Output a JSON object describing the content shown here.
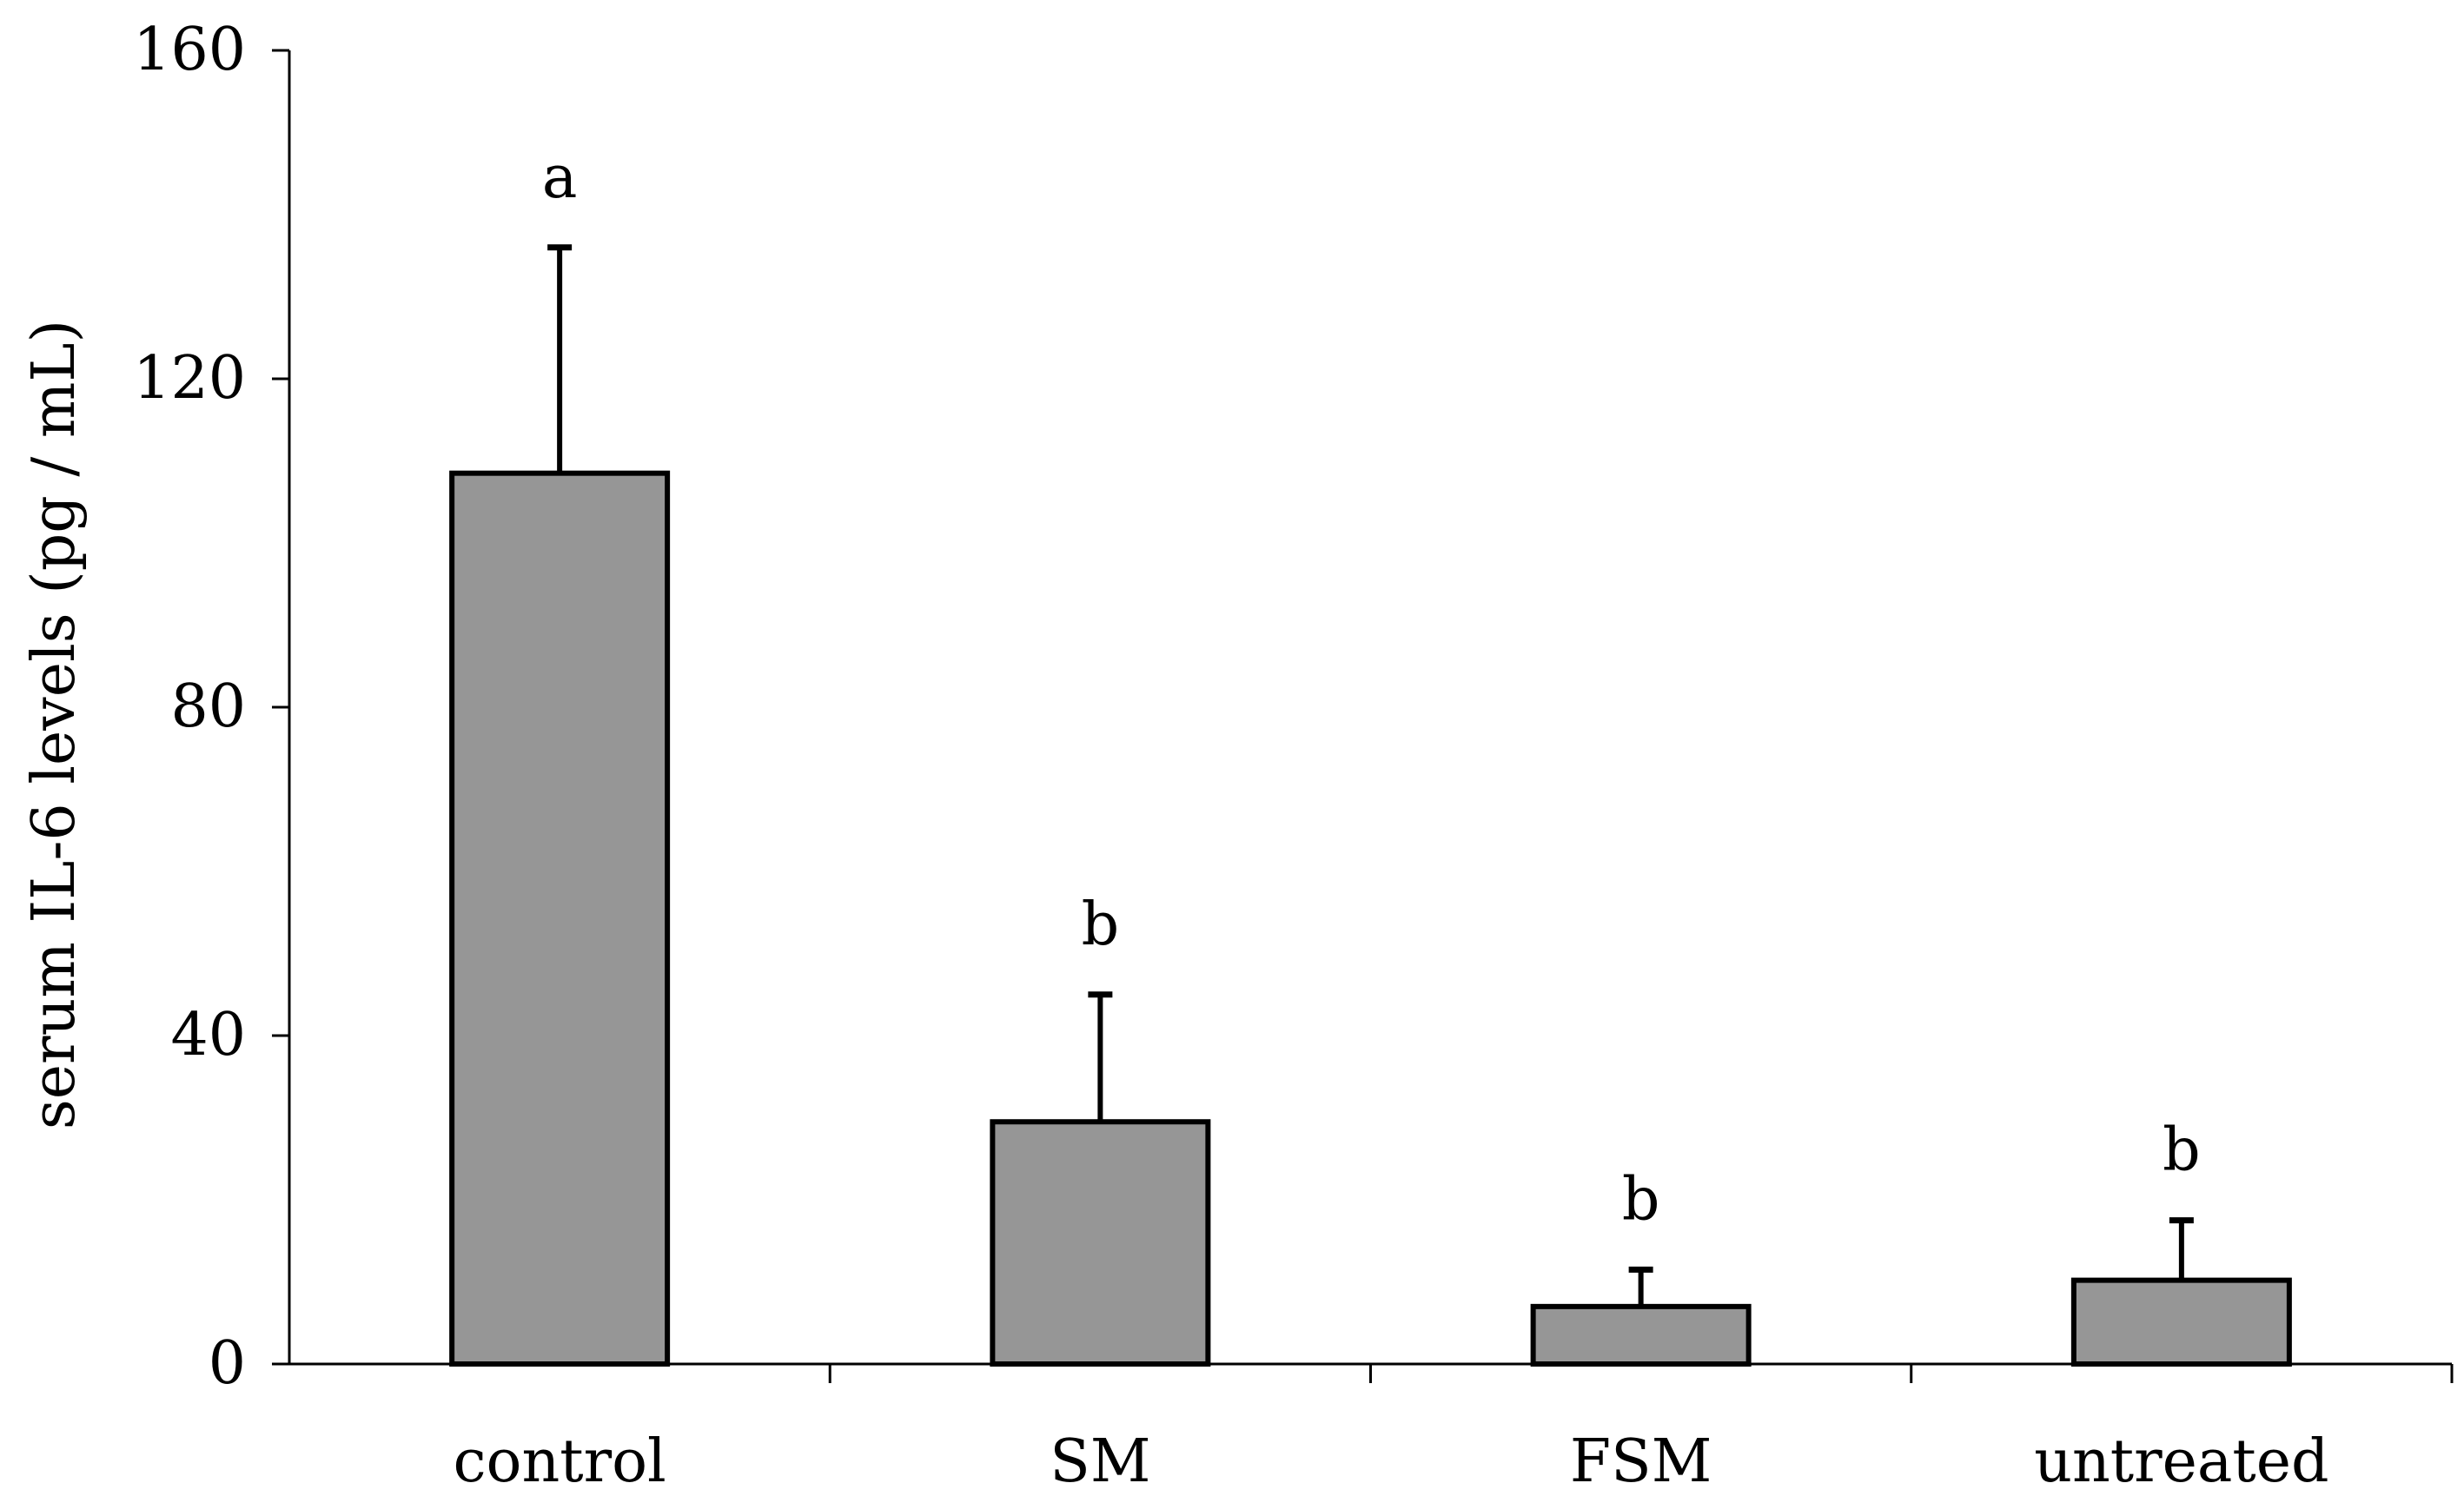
{
  "chart_data": {
    "type": "bar",
    "title": "",
    "xlabel": "",
    "ylabel": "serum IL-6 levels (pg / mL)",
    "ylim": [
      0,
      160
    ],
    "yticks": [
      0,
      40,
      80,
      120,
      160
    ],
    "categories": [
      "control",
      "SM",
      "FSM",
      "untreated"
    ],
    "values": [
      108.5,
      29.5,
      7.0,
      10.2
    ],
    "errors": [
      27.5,
      15.5,
      4.5,
      7.3
    ],
    "significance": [
      "a",
      "b",
      "b",
      "b"
    ],
    "grid": false,
    "legend": "none",
    "colors": {
      "bar_fill": "#969696",
      "bar_stroke": "#000000",
      "axis": "#000000"
    }
  }
}
